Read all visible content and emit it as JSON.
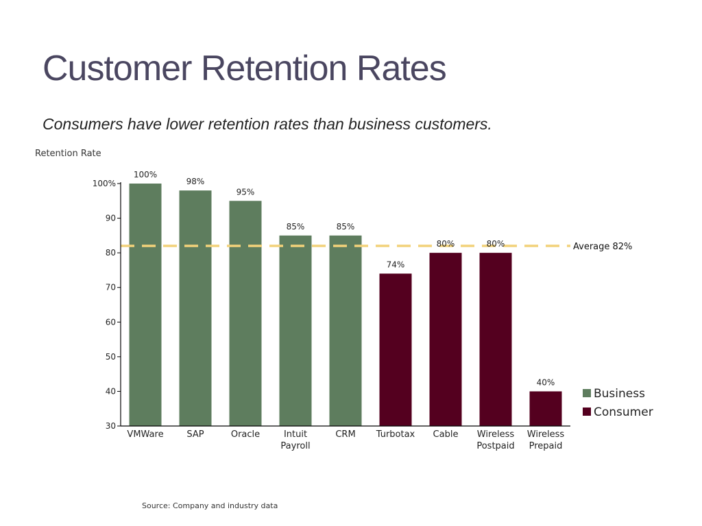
{
  "slide": {
    "title": "Customer Retention Rates",
    "subtitle": "Consumers have lower retention rates than business customers.",
    "source": "Source: Company and industry data"
  },
  "colors": {
    "business": "#5e7d5e",
    "consumer": "#54001f",
    "average_line": "#f2d27a",
    "title": "#4a4660"
  },
  "chart_data": {
    "type": "bar",
    "ylabel": "Retention Rate",
    "xlabel": "",
    "ylim": [
      30,
      100
    ],
    "yticks": [
      30,
      40,
      50,
      60,
      70,
      80,
      90,
      100
    ],
    "ytick_labels": [
      "30",
      "40",
      "50",
      "60",
      "70",
      "80",
      "90",
      "100%"
    ],
    "categories": [
      "VMWare",
      "SAP",
      "Oracle",
      "Intuit Payroll",
      "CRM",
      "Turbotax",
      "Cable",
      "Wireless Postpaid",
      "Wireless Prepaid"
    ],
    "category_labels": [
      [
        "VMWare"
      ],
      [
        "SAP"
      ],
      [
        "Oracle"
      ],
      [
        "Intuit",
        "Payroll"
      ],
      [
        "CRM"
      ],
      [
        "Turbotax"
      ],
      [
        "Cable"
      ],
      [
        "Wireless",
        "Postpaid"
      ],
      [
        "Wireless",
        "Prepaid"
      ]
    ],
    "values": [
      100,
      98,
      95,
      85,
      85,
      74,
      80,
      80,
      40
    ],
    "data_labels": [
      "100%",
      "98%",
      "95%",
      "85%",
      "85%",
      "74%",
      "80%",
      "80%",
      "40%"
    ],
    "groups": [
      "Business",
      "Business",
      "Business",
      "Business",
      "Business",
      "Consumer",
      "Consumer",
      "Consumer",
      "Consumer"
    ],
    "legend": [
      {
        "name": "Business",
        "color": "#5e7d5e"
      },
      {
        "name": "Consumer",
        "color": "#54001f"
      }
    ],
    "legend_position": "right",
    "reference_line": {
      "value": 82,
      "label": "Average 82%",
      "style": "dashed"
    },
    "grid": false
  }
}
